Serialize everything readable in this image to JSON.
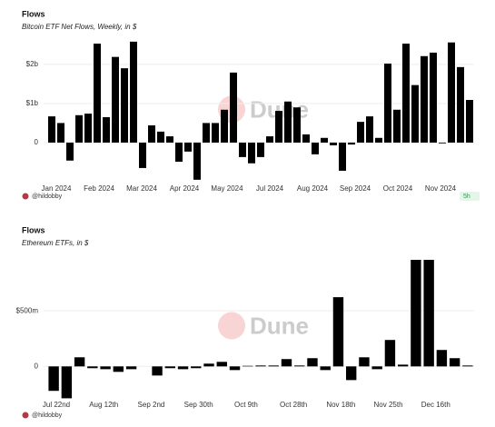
{
  "chart_data": [
    {
      "type": "bar",
      "title": "Flows",
      "subtitle": "Bitcoin ETF Net Flows, Weekly, in $",
      "color": "#000000",
      "x_labels": [
        "Jan 2024",
        "Feb 2024",
        "Mar 2024",
        "Apr 2024",
        "May 2024",
        "Jul 2024",
        "Aug 2024",
        "Sep 2024",
        "Oct 2024",
        "Nov 2024"
      ],
      "values": [
        670000000,
        500000000,
        -460000000,
        700000000,
        740000000,
        2530000000,
        650000000,
        2190000000,
        1900000000,
        2580000000,
        -650000000,
        440000000,
        280000000,
        160000000,
        -490000000,
        -230000000,
        -950000000,
        500000000,
        500000000,
        840000000,
        1790000000,
        -370000000,
        -530000000,
        -370000000,
        160000000,
        810000000,
        1050000000,
        900000000,
        210000000,
        -300000000,
        120000000,
        -70000000,
        -720000000,
        -50000000,
        530000000,
        670000000,
        120000000,
        2020000000,
        840000000,
        2530000000,
        1470000000,
        2210000000,
        2300000000,
        -20000000,
        2560000000,
        1930000000,
        1090000000
      ],
      "ylim": [
        -1000000000,
        2600000000
      ],
      "yticks": [
        {
          "value": 0,
          "label": "0"
        },
        {
          "value": 1000000000,
          "label": "$1b"
        },
        {
          "value": 2000000000,
          "label": "$2b"
        }
      ],
      "grid": true,
      "watermark": "Dune",
      "author": "@hildobby",
      "badge": "5h"
    },
    {
      "type": "bar",
      "title": "Flows",
      "subtitle": "Ethereum ETFs, in $",
      "color": "#000000",
      "x_labels": [
        "Jul 22nd",
        "Aug 12th",
        "Sep 2nd",
        "Sep 30th",
        "Oct 9th",
        "Oct 28th",
        "Nov 18th",
        "Nov 25th",
        "Dec 16th"
      ],
      "values": [
        -220000000,
        -287000000,
        82000000,
        -16000000,
        -25000000,
        -49000000,
        -25000000,
        0,
        -82000000,
        -16000000,
        -25000000,
        -16000000,
        25000000,
        41000000,
        -33000000,
        5000000,
        8000000,
        8000000,
        66000000,
        8000000,
        74000000,
        -33000000,
        623000000,
        -123000000,
        82000000,
        -25000000,
        238000000,
        16000000,
        959000000,
        959000000,
        148000000,
        74000000,
        8000000
      ],
      "ylim": [
        -300000000,
        1000000000
      ],
      "yticks": [
        {
          "value": 0,
          "label": "0"
        },
        {
          "value": 500000000,
          "label": "$500m"
        }
      ],
      "grid": true,
      "watermark": "Dune",
      "author": "@hildobby"
    }
  ]
}
